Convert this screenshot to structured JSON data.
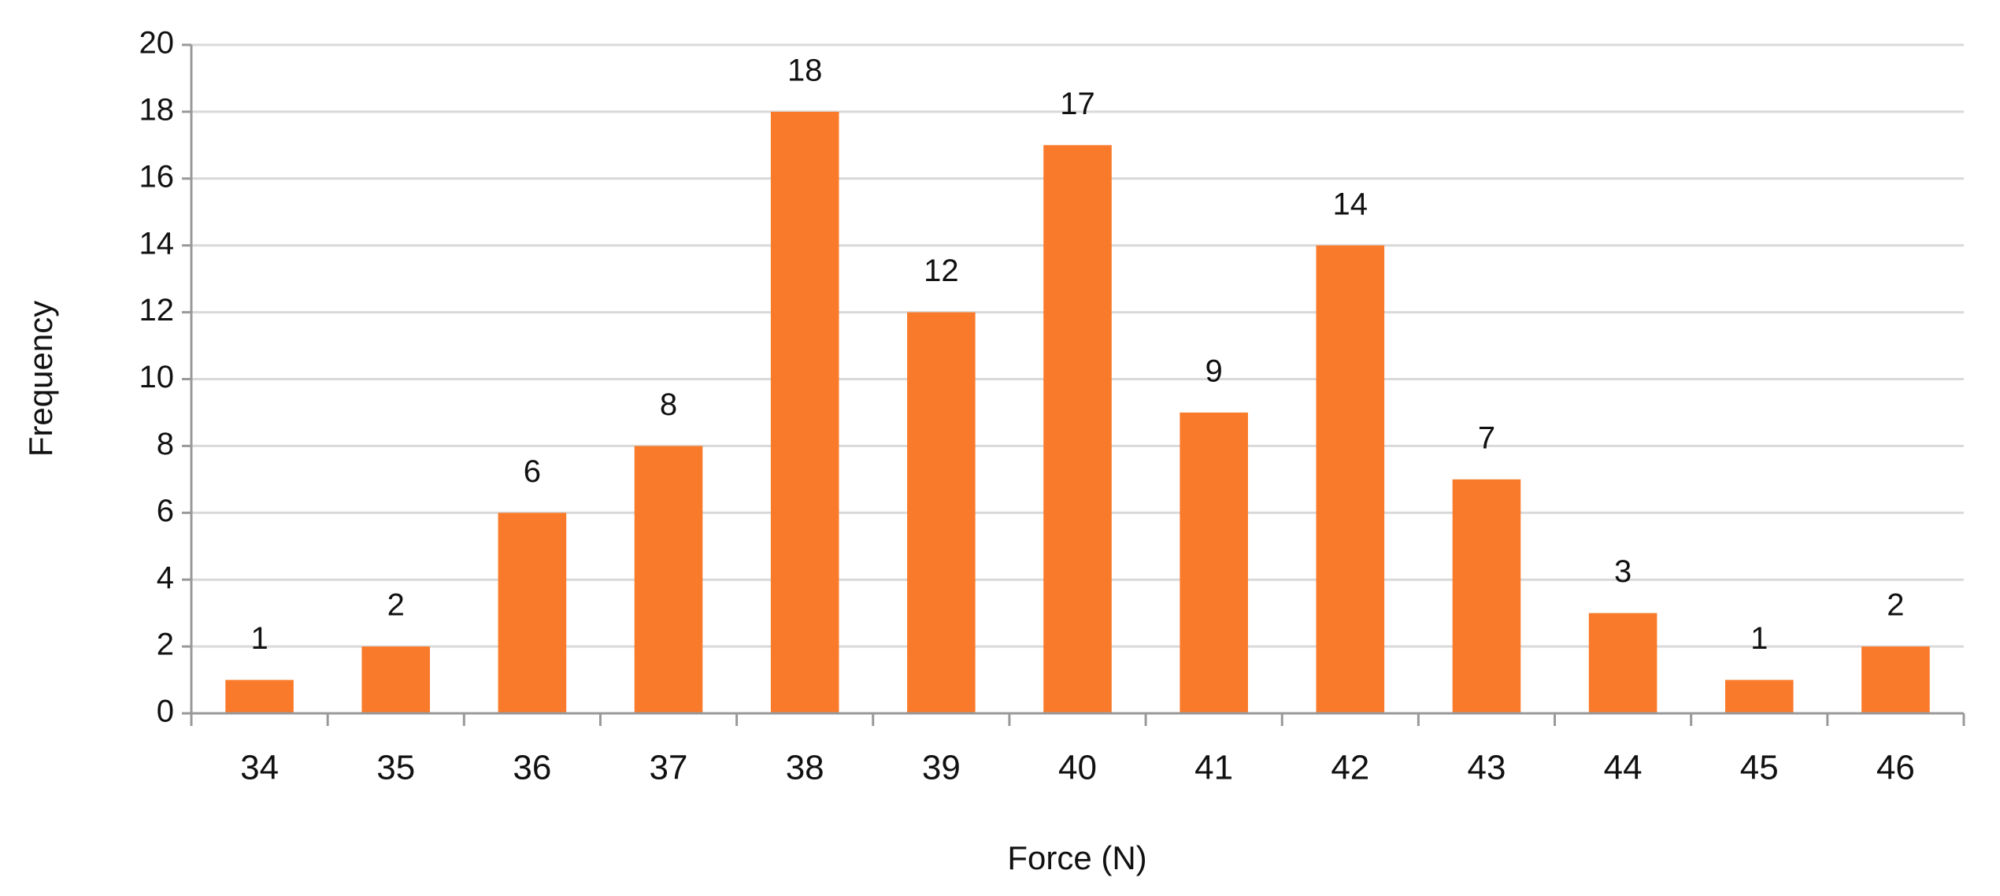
{
  "chart_data": {
    "type": "bar",
    "xlabel": "Force (N)",
    "ylabel": "Frequency",
    "categories": [
      "34",
      "35",
      "36",
      "37",
      "38",
      "39",
      "40",
      "41",
      "42",
      "43",
      "44",
      "45",
      "46"
    ],
    "values": [
      1,
      2,
      6,
      8,
      18,
      12,
      17,
      9,
      14,
      7,
      3,
      1,
      2
    ],
    "color": "#f97a2a",
    "ylim": [
      0,
      20
    ],
    "yticks": [
      0,
      2,
      4,
      6,
      8,
      10,
      12,
      14,
      16,
      18,
      20
    ],
    "grid": true,
    "data_labels": true
  }
}
